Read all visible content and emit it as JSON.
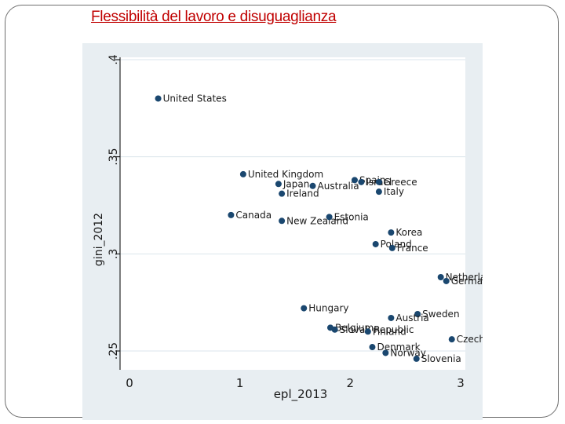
{
  "slide": {
    "title": "Flessibilità del lavoro e disuguaglianza"
  },
  "chart_data": {
    "type": "scatter",
    "title": "",
    "xlabel": "epl_2013",
    "ylabel": "gini_2012",
    "xlim": [
      0,
      3
    ],
    "ylim": [
      0.25,
      0.4
    ],
    "xticks": [
      0,
      1,
      2,
      3
    ],
    "yticks": [
      0.25,
      0.3,
      0.35,
      0.4
    ],
    "ytick_labels": [
      ".25",
      ".3",
      ".35",
      ".4"
    ],
    "grid": true,
    "legend": "none",
    "colors": {
      "marker": "#1a476f",
      "text": "#1a1a1a",
      "grid": "#dbe6ec",
      "outer_bg": "#e8eef2"
    },
    "points": [
      {
        "label": "United States",
        "x": 0.26,
        "y": 0.38
      },
      {
        "label": "United Kingdom",
        "x": 1.03,
        "y": 0.341
      },
      {
        "label": "Japan",
        "x": 1.35,
        "y": 0.336
      },
      {
        "label": "Australia",
        "x": 1.66,
        "y": 0.335
      },
      {
        "label": "Ireland",
        "x": 1.38,
        "y": 0.331
      },
      {
        "label": "Spain",
        "x": 2.04,
        "y": 0.338
      },
      {
        "label": "Israel",
        "x": 2.1,
        "y": 0.337
      },
      {
        "label": "Greece",
        "x": 2.26,
        "y": 0.337
      },
      {
        "label": "Italy",
        "x": 2.26,
        "y": 0.332
      },
      {
        "label": "Canada",
        "x": 0.92,
        "y": 0.32
      },
      {
        "label": "New Zealand",
        "x": 1.38,
        "y": 0.317
      },
      {
        "label": "Estonia",
        "x": 1.81,
        "y": 0.319
      },
      {
        "label": "Korea",
        "x": 2.37,
        "y": 0.311
      },
      {
        "label": "Poland",
        "x": 2.23,
        "y": 0.305
      },
      {
        "label": "France",
        "x": 2.38,
        "y": 0.303
      },
      {
        "label": "Netherlands",
        "x": 2.82,
        "y": 0.288
      },
      {
        "label": "Germany",
        "x": 2.87,
        "y": 0.286
      },
      {
        "label": "Hungary",
        "x": 1.58,
        "y": 0.272
      },
      {
        "label": "Sweden",
        "x": 2.61,
        "y": 0.269
      },
      {
        "label": "Austria",
        "x": 2.37,
        "y": 0.267
      },
      {
        "label": "Belgium",
        "x": 1.82,
        "y": 0.262
      },
      {
        "label": "Slovak Republic",
        "x": 1.86,
        "y": 0.261
      },
      {
        "label": "Finland",
        "x": 2.16,
        "y": 0.26
      },
      {
        "label": "Czech Republic",
        "x": 2.92,
        "y": 0.256
      },
      {
        "label": "Denmark",
        "x": 2.2,
        "y": 0.252
      },
      {
        "label": "Norway",
        "x": 2.32,
        "y": 0.249
      },
      {
        "label": "Slovenia",
        "x": 2.6,
        "y": 0.246
      }
    ]
  }
}
